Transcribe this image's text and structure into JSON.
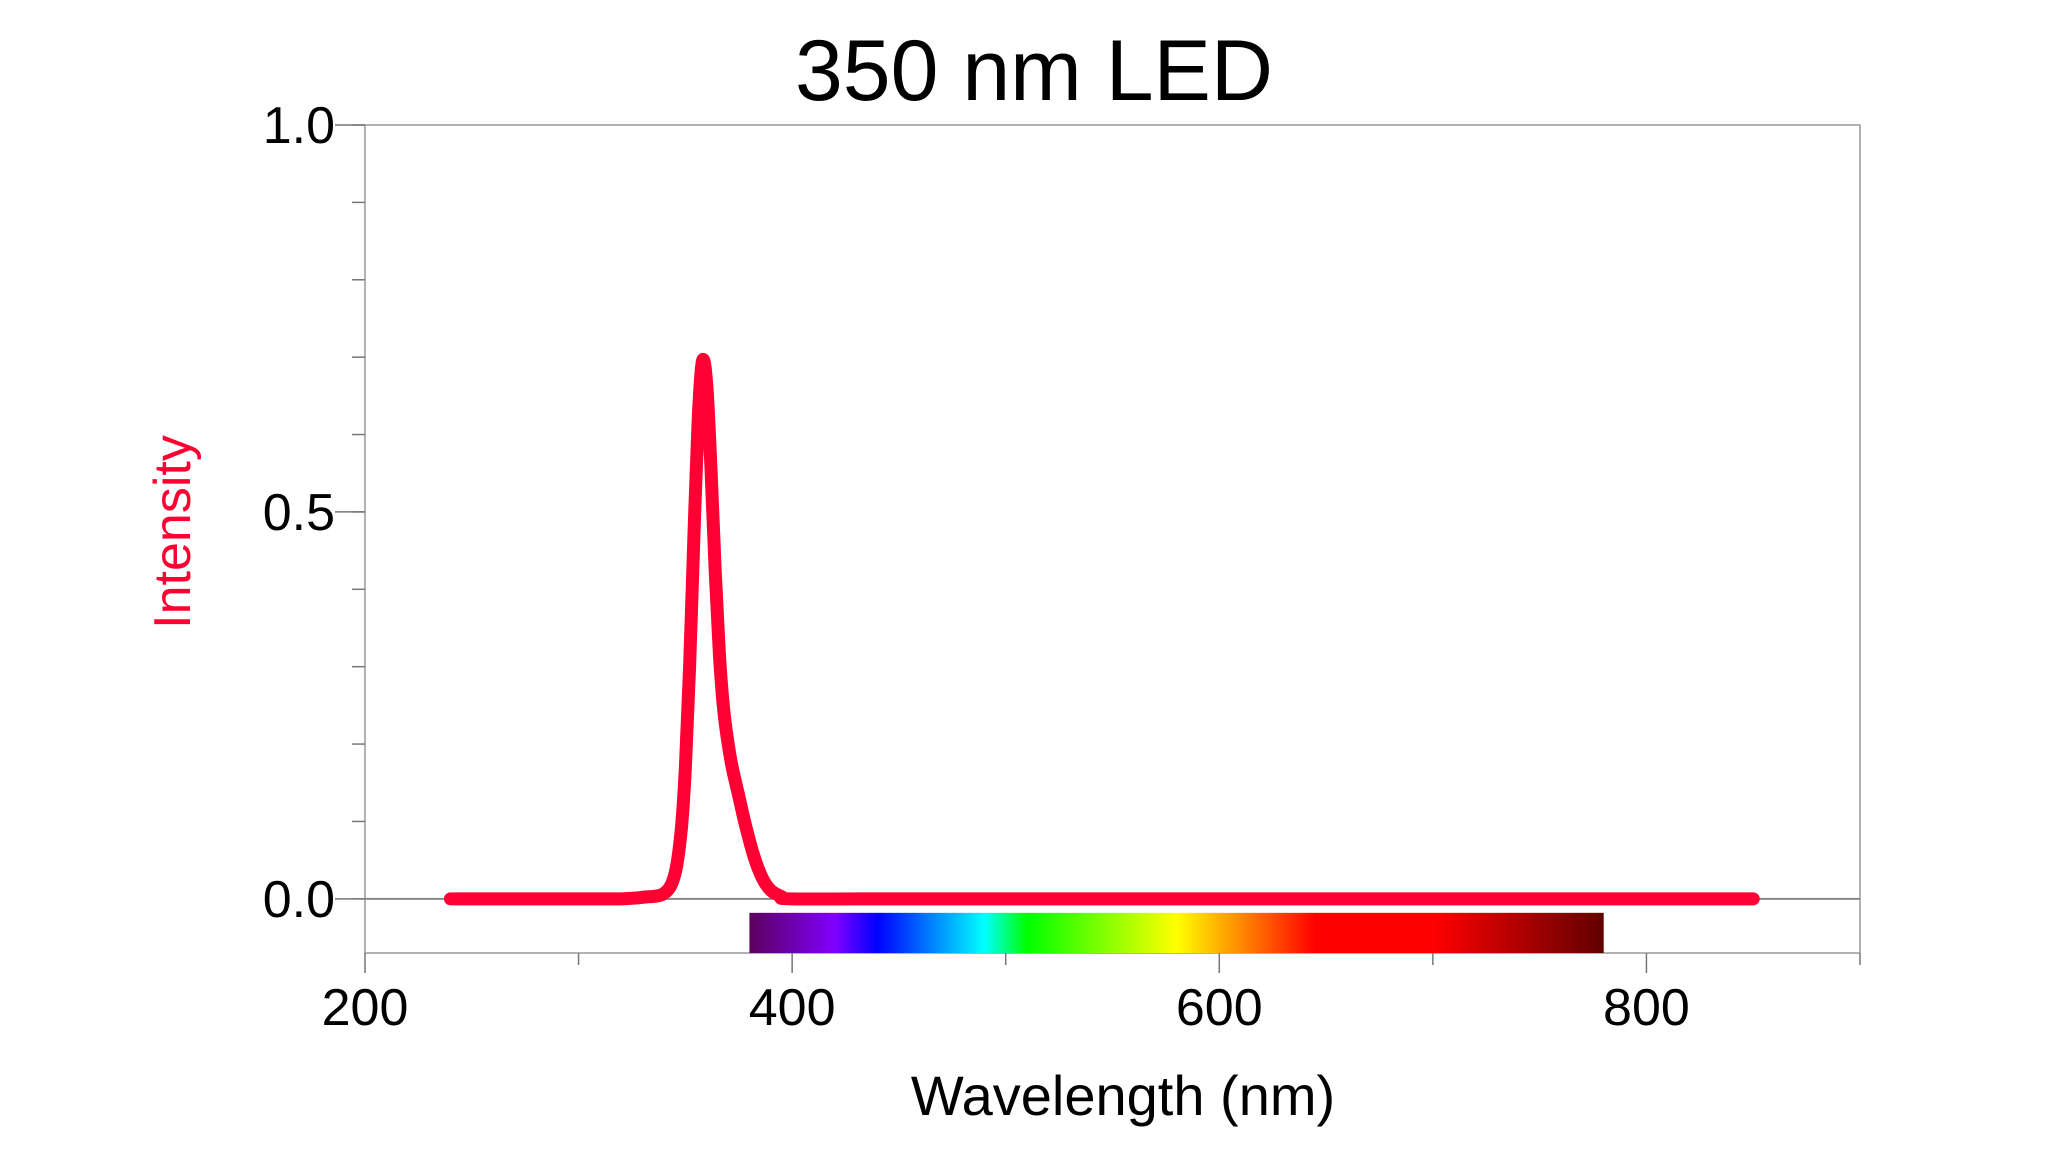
{
  "chart_data": {
    "type": "line",
    "title": "350 nm LED",
    "xlabel": "Wavelength (nm)",
    "ylabel": "Intensity",
    "xlim": [
      200,
      900
    ],
    "ylim": [
      -0.07,
      1.0
    ],
    "x_ticks": [
      200,
      400,
      600,
      800
    ],
    "x_tick_labels": [
      "200",
      "400",
      "600",
      "800"
    ],
    "x_minor_ticks": [
      300,
      500,
      700,
      900
    ],
    "y_ticks": [
      0.0,
      0.5,
      1.0
    ],
    "y_tick_labels": [
      "0.0",
      "0.5",
      "1.0"
    ],
    "y_minor_step": 0.1,
    "grid": false,
    "legend": "none",
    "zero_line": true,
    "series_color": "#ff0033",
    "ylabel_color": "#ff0033",
    "x": [
      240,
      260,
      280,
      300,
      320,
      330,
      340,
      345,
      348,
      350,
      352,
      354,
      356,
      358,
      360,
      362,
      364,
      366,
      368,
      370,
      372,
      375,
      378,
      382,
      386,
      390,
      395,
      400,
      450,
      500,
      550,
      600,
      650,
      700,
      750,
      800,
      850
    ],
    "y": [
      0,
      0,
      0,
      0,
      0,
      0.002,
      0.007,
      0.031,
      0.087,
      0.169,
      0.301,
      0.468,
      0.619,
      0.695,
      0.665,
      0.556,
      0.422,
      0.313,
      0.243,
      0.201,
      0.169,
      0.133,
      0.097,
      0.056,
      0.027,
      0.011,
      0.003,
      0,
      0,
      0,
      0,
      0,
      0,
      0,
      0,
      0,
      0
    ],
    "spectrum_bar": {
      "range_nm": [
        380,
        780
      ],
      "stops": [
        {
          "nm": 380,
          "color": "#5c005c"
        },
        {
          "nm": 420,
          "color": "#8000ff"
        },
        {
          "nm": 440,
          "color": "#0000ff"
        },
        {
          "nm": 490,
          "color": "#00ffff"
        },
        {
          "nm": 510,
          "color": "#00ff00"
        },
        {
          "nm": 580,
          "color": "#ffff00"
        },
        {
          "nm": 645,
          "color": "#ff0000"
        },
        {
          "nm": 700,
          "color": "#ff0000"
        },
        {
          "nm": 780,
          "color": "#610000"
        }
      ]
    }
  }
}
